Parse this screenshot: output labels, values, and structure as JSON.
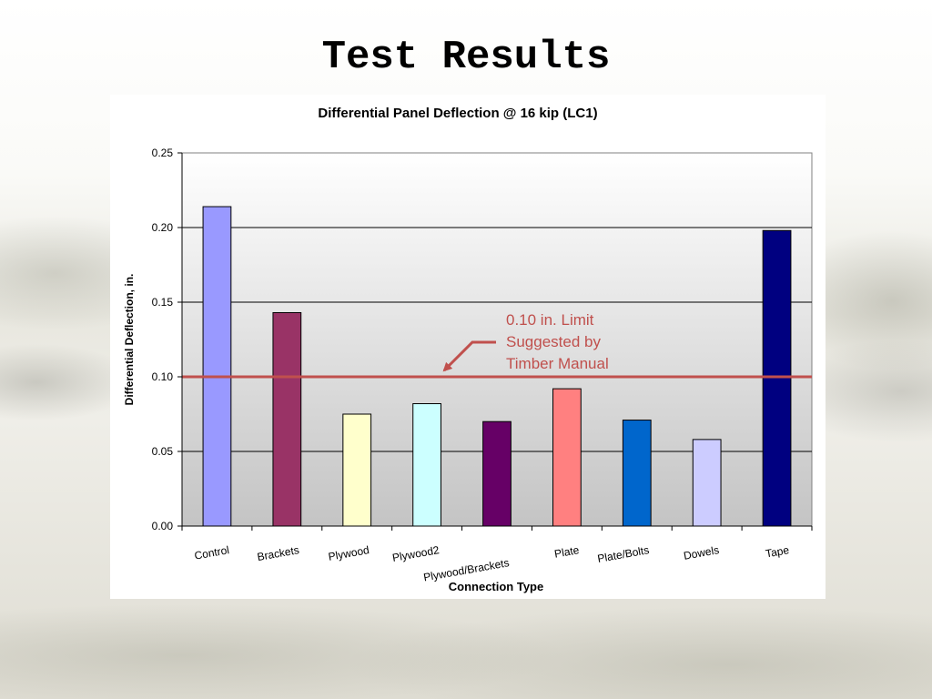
{
  "slide": {
    "title": "Test Results"
  },
  "chart_data": {
    "type": "bar",
    "title": "Differential Panel Deflection @ 16 kip (LC1)",
    "xlabel": "Connection Type",
    "ylabel": "Differential Deflection, in.",
    "ylim": [
      0,
      0.25
    ],
    "yticks": [
      "0.00",
      "0.05",
      "0.10",
      "0.15",
      "0.20",
      "0.25"
    ],
    "grid": true,
    "categories": [
      "Control",
      "Brackets",
      "Plywood",
      "Plywood2",
      "Plywood/Brackets",
      "Plate",
      "Plate/Bolts",
      "Dowels",
      "Tape"
    ],
    "values": [
      0.214,
      0.143,
      0.075,
      0.082,
      0.07,
      0.092,
      0.071,
      0.058,
      0.198
    ],
    "bar_colors": [
      "#9999ff",
      "#993366",
      "#ffffcc",
      "#ccffff",
      "#660066",
      "#ff8080",
      "#0066cc",
      "#ccccff",
      "#000080"
    ],
    "limit_line": {
      "value": 0.1,
      "color": "#c0504d"
    },
    "annotation": {
      "lines": [
        "0.10 in. Limit",
        "Suggested by",
        "Timber Manual"
      ],
      "color": "#c0504d"
    }
  }
}
